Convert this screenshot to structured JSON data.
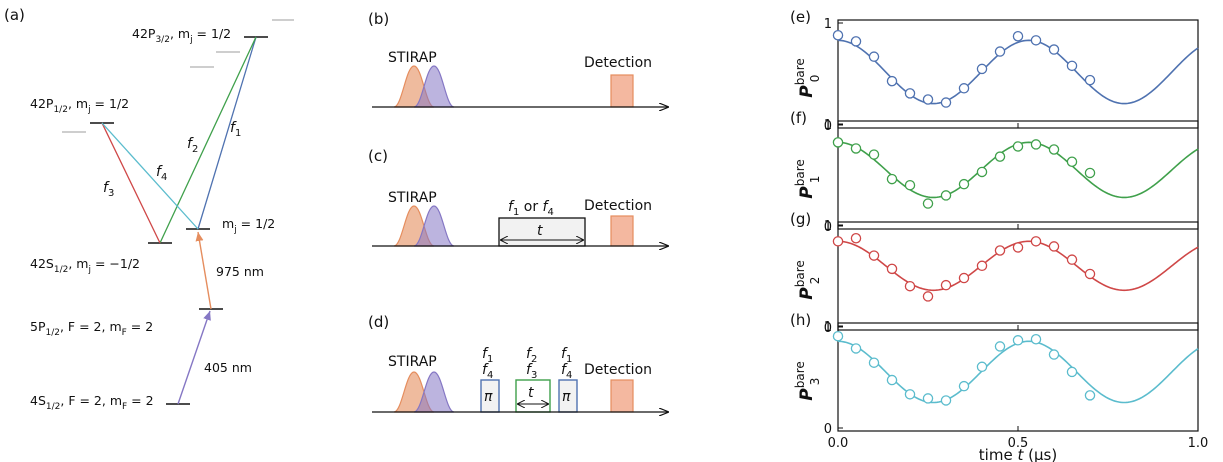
{
  "colors": {
    "blue": "#4f72b0",
    "green": "#3fa04b",
    "red": "#cf4747",
    "cyan": "#5bbccd",
    "purple": "#8577c4",
    "orange": "#e58d5e",
    "gray": "#b0b0b0"
  },
  "panel_a": {
    "label": "(a)",
    "levels": {
      "p32": {
        "main": "42P",
        "sub": "3/2",
        "rest": ", m",
        "jsub": "j",
        "tail": " = 1/2"
      },
      "p12": {
        "main": "42P",
        "sub": "1/2",
        "rest": ", m",
        "jsub": "j",
        "tail": " = 1/2"
      },
      "s12": {
        "main": "42S",
        "sub": "1/2",
        "rest": ", m",
        "jsub": "j",
        "tail": " = −1/2"
      },
      "mj_right": {
        "main": "m",
        "sub": "j",
        "tail": " = 1/2"
      },
      "p5": {
        "main": "5P",
        "sub": "1/2",
        "rest": ", F = 2, m",
        "jsub": "F",
        "tail": " = 2"
      },
      "s4": {
        "main": "4S",
        "sub": "1/2",
        "rest": ", F = 2, m",
        "jsub": "F",
        "tail": " = 2"
      }
    },
    "wavelength_upper": "975 nm",
    "wavelength_lower": "405 nm",
    "f1": {
      "f": "f",
      "n": "1"
    },
    "f2": {
      "f": "f",
      "n": "2"
    },
    "f3": {
      "f": "f",
      "n": "3"
    },
    "f4": {
      "f": "f",
      "n": "4"
    }
  },
  "sequences": {
    "b": {
      "label": "(b)",
      "stirap": "STIRAP",
      "detection": "Detection"
    },
    "c": {
      "label": "(c)",
      "stirap": "STIRAP",
      "detection": "Detection",
      "pulse_f": "f",
      "pulse_n1": "1",
      "pulse_or": " or ",
      "pulse_n4": "4",
      "t": "t"
    },
    "d": {
      "label": "(d)",
      "stirap": "STIRAP",
      "detection": "Detection",
      "pi": "π",
      "t": "t",
      "left_top": "1",
      "left_bot": "4",
      "mid_top": "2",
      "mid_bot": "3",
      "right_top": "1",
      "right_bot": "4",
      "f": "f"
    }
  },
  "chart_data": [
    {
      "type": "scatter",
      "panel_label": "(e)",
      "ylabel": {
        "base": "P",
        "sup": "bare",
        "sub": "0"
      },
      "x_ticks": [
        "0.0",
        "0.5",
        "1.0"
      ],
      "y_ticks": [
        "0",
        "1"
      ],
      "xlim": [
        0,
        1
      ],
      "ylim": [
        0,
        1
      ],
      "fit": {
        "offset": 0.52,
        "amp": 0.31,
        "period": 0.53,
        "phase": 0.0
      },
      "x": [
        0.0,
        0.05,
        0.1,
        0.15,
        0.2,
        0.25,
        0.3,
        0.35,
        0.4,
        0.45,
        0.5,
        0.55,
        0.6,
        0.65,
        0.7
      ],
      "y": [
        0.88,
        0.82,
        0.67,
        0.43,
        0.31,
        0.25,
        0.22,
        0.36,
        0.55,
        0.72,
        0.87,
        0.83,
        0.74,
        0.58,
        0.44
      ]
    },
    {
      "type": "scatter",
      "panel_label": "(f)",
      "ylabel": {
        "base": "P",
        "sup": "bare",
        "sub": "1"
      },
      "x_ticks": [
        "0.0",
        "0.5",
        "1.0"
      ],
      "y_ticks": [
        "0",
        "1"
      ],
      "xlim": [
        0,
        1
      ],
      "ylim": [
        0,
        1
      ],
      "fit": {
        "offset": 0.55,
        "amp": 0.27,
        "period": 0.53,
        "phase": 0.0
      },
      "x": [
        0.0,
        0.05,
        0.1,
        0.15,
        0.2,
        0.25,
        0.3,
        0.35,
        0.4,
        0.45,
        0.5,
        0.55,
        0.6,
        0.65,
        0.7
      ],
      "y": [
        0.82,
        0.76,
        0.7,
        0.46,
        0.4,
        0.22,
        0.3,
        0.41,
        0.53,
        0.68,
        0.78,
        0.8,
        0.75,
        0.63,
        0.52
      ]
    },
    {
      "type": "scatter",
      "panel_label": "(g)",
      "ylabel": {
        "base": "P",
        "sup": "bare",
        "sub": "2"
      },
      "x_ticks": [
        "0.0",
        "0.5",
        "1.0"
      ],
      "y_ticks": [
        "0",
        "1"
      ],
      "xlim": [
        0,
        1
      ],
      "ylim": [
        0,
        1
      ],
      "fit": {
        "offset": 0.6,
        "amp": 0.24,
        "period": 0.53,
        "phase": 0.0
      },
      "x": [
        0.0,
        0.05,
        0.1,
        0.15,
        0.2,
        0.25,
        0.3,
        0.35,
        0.4,
        0.45,
        0.5,
        0.55,
        0.6,
        0.65,
        0.7
      ],
      "y": [
        0.84,
        0.87,
        0.7,
        0.57,
        0.4,
        0.3,
        0.41,
        0.48,
        0.6,
        0.75,
        0.78,
        0.84,
        0.79,
        0.66,
        0.52
      ]
    },
    {
      "type": "scatter",
      "panel_label": "(h)",
      "ylabel": {
        "base": "P",
        "sup": "bare",
        "sub": "3"
      },
      "x_ticks": [
        "0.0",
        "0.5",
        "1.0"
      ],
      "y_ticks": [
        "0",
        "1"
      ],
      "xlim": [
        0,
        1
      ],
      "ylim": [
        0,
        1
      ],
      "xlabel": {
        "pre": "time ",
        "t": "t",
        "post": " (μs)"
      },
      "fit": {
        "offset": 0.55,
        "amp": 0.3,
        "period": 0.53,
        "phase": 0.0
      },
      "x": [
        0.0,
        0.05,
        0.1,
        0.15,
        0.2,
        0.25,
        0.3,
        0.35,
        0.4,
        0.45,
        0.5,
        0.55,
        0.6,
        0.65,
        0.7
      ],
      "y": [
        0.9,
        0.78,
        0.64,
        0.47,
        0.33,
        0.29,
        0.27,
        0.41,
        0.6,
        0.8,
        0.86,
        0.87,
        0.72,
        0.55,
        0.32
      ]
    }
  ]
}
